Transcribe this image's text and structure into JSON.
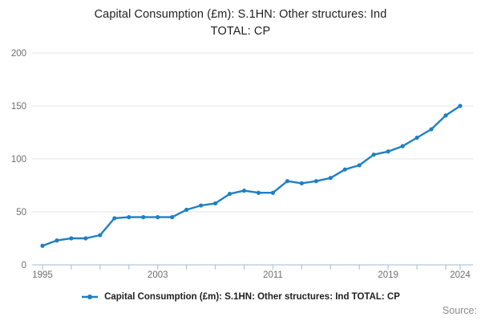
{
  "title": {
    "line1": "Capital Consumption (£m): S.1HN: Other structures: Ind",
    "line2": "TOTAL: CP"
  },
  "legend": {
    "label": "Capital Consumption (£m): S.1HN: Other structures: Ind TOTAL: CP"
  },
  "source_label": "Source:",
  "colors": {
    "line": "#1f80c4",
    "marker": "#1f80c4",
    "grid": "#e6e6e6",
    "axis": "#b8c7d8",
    "tick": "#b8c7d8",
    "tick_label": "#6e6e6e",
    "title_text": "#1f1f1f",
    "legend_text": "#1f1f1f",
    "source_text": "#8c8c8c"
  },
  "chart_data": {
    "type": "line",
    "title": "Capital Consumption (£m): S.1HN: Other structures: Ind TOTAL: CP",
    "series": [
      {
        "name": "Capital Consumption (£m): S.1HN: Other structures: Ind TOTAL: CP",
        "x": [
          1995,
          1996,
          1997,
          1998,
          1999,
          2000,
          2001,
          2002,
          2003,
          2004,
          2005,
          2006,
          2007,
          2008,
          2009,
          2010,
          2011,
          2012,
          2013,
          2014,
          2015,
          2016,
          2017,
          2018,
          2019,
          2020,
          2021,
          2022,
          2023,
          2024
        ],
        "values": [
          18,
          23,
          25,
          25,
          28,
          44,
          45,
          45,
          45,
          45,
          52,
          56,
          58,
          67,
          70,
          68,
          68,
          79,
          77,
          79,
          82,
          90,
          94,
          104,
          107,
          112,
          120,
          128,
          141,
          150
        ]
      }
    ],
    "xlabel": "",
    "ylabel": "",
    "xlim": [
      1995,
      2024
    ],
    "ylim": [
      0,
      200
    ],
    "yticks": [
      0,
      50,
      100,
      150,
      200
    ],
    "xticks_labeled": [
      1995,
      2003,
      2011,
      2019,
      2024
    ],
    "xtick_minor_step": 2,
    "grid": "horizontal",
    "legend_position": "bottom",
    "marker": "circle"
  }
}
